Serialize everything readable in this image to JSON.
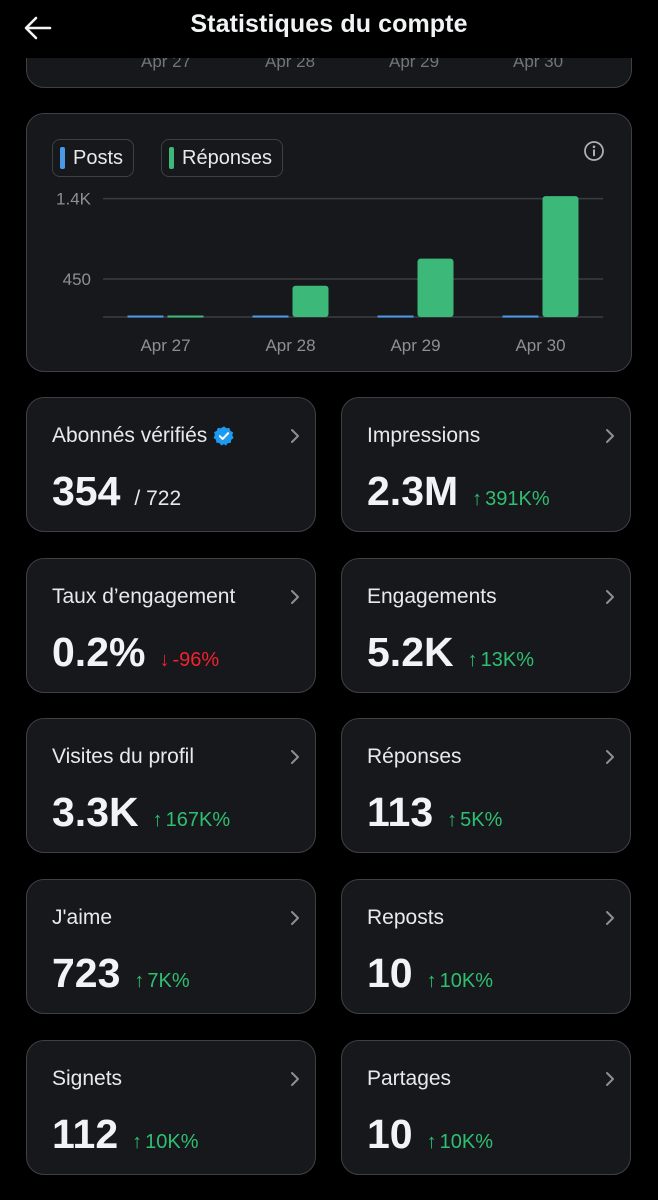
{
  "header": {
    "title": "Statistiques du compte"
  },
  "top_chart": {
    "tick_labels": [
      "Apr 27",
      "Apr 28",
      "Apr 29",
      "Apr 30"
    ]
  },
  "chart_data": {
    "type": "bar",
    "categories": [
      "Apr 27",
      "Apr 28",
      "Apr 29",
      "Apr 30"
    ],
    "series": [
      {
        "name": "Posts",
        "color": "#4a99e9",
        "values": [
          0,
          0,
          0,
          0
        ]
      },
      {
        "name": "Réponses",
        "color": "#3cb878",
        "values": [
          0,
          370,
          690,
          1430
        ]
      }
    ],
    "y_ticks": [
      {
        "value": 450,
        "label": "450"
      },
      {
        "value": 1400,
        "label": "1.4K"
      }
    ],
    "ylim": [
      0,
      1550
    ],
    "grid": true,
    "legend": "top-left"
  },
  "stats": [
    {
      "label": "Abonnés vérifiés",
      "value": "354",
      "sub": "/ 722",
      "change": "",
      "direction": "",
      "verified": true
    },
    {
      "label": "Impressions",
      "value": "2.3M",
      "sub": "",
      "change": "391K%",
      "direction": "up"
    },
    {
      "label": "Taux d’engagement",
      "value": "0.2%",
      "sub": "",
      "change": "-96%",
      "direction": "down"
    },
    {
      "label": "Engagements",
      "value": "5.2K",
      "sub": "",
      "change": "13K%",
      "direction": "up"
    },
    {
      "label": "Visites du profil",
      "value": "3.3K",
      "sub": "",
      "change": "167K%",
      "direction": "up"
    },
    {
      "label": "Réponses",
      "value": "113",
      "sub": "",
      "change": "5K%",
      "direction": "up"
    },
    {
      "label": "J'aime",
      "value": "723",
      "sub": "",
      "change": "7K%",
      "direction": "up"
    },
    {
      "label": "Reposts",
      "value": "10",
      "sub": "",
      "change": "10K%",
      "direction": "up"
    },
    {
      "label": "Signets",
      "value": "112",
      "sub": "",
      "change": "10K%",
      "direction": "up"
    },
    {
      "label": "Partages",
      "value": "10",
      "sub": "",
      "change": "10K%",
      "direction": "up"
    }
  ],
  "icons": {
    "back": "arrow-left-icon",
    "info": "info-icon",
    "verified": "verified-badge-icon",
    "chevron": "chevron-right-icon"
  },
  "colors": {
    "background": "#000000",
    "card": "#16181c",
    "up": "#2fbf71",
    "down": "#f4212e",
    "verified": "#1d9bf0"
  }
}
